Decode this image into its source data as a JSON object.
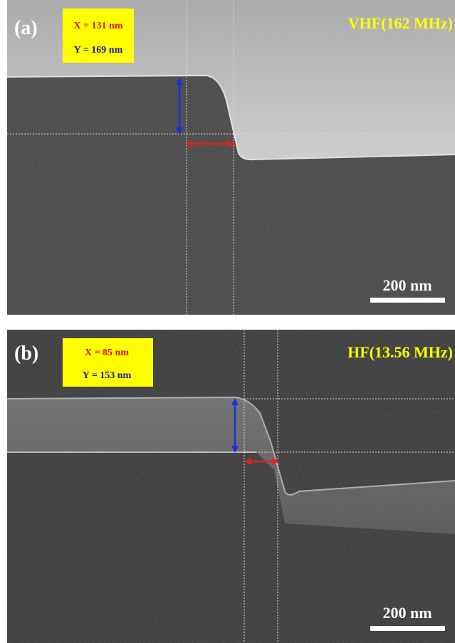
{
  "panels": [
    {
      "label": "(a)",
      "x_measure": "X = 131 nm",
      "y_measure": "Y = 169 nm",
      "condition": "VHF(162 MHz)",
      "scale_bar": "200 nm"
    },
    {
      "label": "(b)",
      "x_measure": "X = 85 nm",
      "y_measure": "Y = 153 nm",
      "condition": "HF(13.56 MHz)",
      "scale_bar": "200 nm"
    }
  ]
}
